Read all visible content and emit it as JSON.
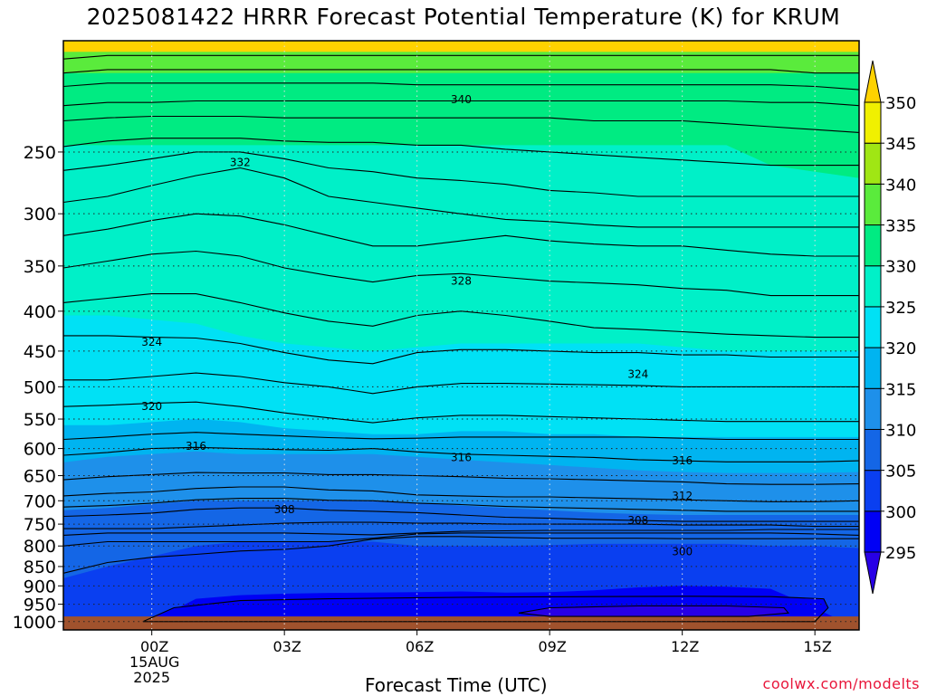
{
  "page": {
    "title": "2025081422 HRRR Forecast Potential Temperature (K) for KRUM",
    "xlabel": "Forecast Time (UTC)",
    "credit": "coolwx.com/modelts"
  },
  "chart_data": {
    "type": "heatmap",
    "title": "2025081422 HRRR Forecast Potential Temperature (K) for KRUM",
    "xlabel": "Forecast Time (UTC)",
    "ylabel": "",
    "x_start_hour_offset": -2,
    "x_end_hour_offset": 16,
    "xlim_hours": [
      -2,
      16
    ],
    "ylim_pressure": [
      1025,
      180
    ],
    "y_scale": "log",
    "x_ticks": [
      {
        "hour": 0,
        "label": "00Z",
        "sub1": "15AUG",
        "sub2": "2025"
      },
      {
        "hour": 3,
        "label": "03Z"
      },
      {
        "hour": 6,
        "label": "06Z"
      },
      {
        "hour": 9,
        "label": "09Z"
      },
      {
        "hour": 12,
        "label": "12Z"
      },
      {
        "hour": 15,
        "label": "15Z"
      }
    ],
    "y_ticks": [
      250,
      300,
      350,
      400,
      450,
      500,
      550,
      600,
      650,
      700,
      750,
      800,
      850,
      900,
      950,
      1000
    ],
    "grid": "dotted",
    "colorbar": {
      "levels": [
        295,
        300,
        305,
        310,
        315,
        320,
        325,
        330,
        335,
        340,
        345,
        350
      ],
      "colors": [
        "#2800e6",
        "#0000f5",
        "#0a3ff0",
        "#1466e6",
        "#1e90ea",
        "#00b4f0",
        "#00e1f5",
        "#00f0c8",
        "#00eb82",
        "#5aeb3c",
        "#a0e614",
        "#f0f000",
        "#ffd200"
      ],
      "extend": "both"
    },
    "fill_levels": [
      {
        "level": 295,
        "p": [
          null,
          null,
          null,
          null,
          null,
          null,
          null,
          null,
          null,
          null,
          null,
          null,
          null,
          null,
          null,
          null,
          null,
          null,
          null
        ]
      },
      {
        "level": 300,
        "p": [
          null,
          null,
          999,
          935,
          925,
          921,
          919,
          918,
          917,
          915,
          918,
          917,
          912,
          904,
          900,
          902,
          908,
          960,
          null
        ]
      },
      {
        "level": 305,
        "p": [
          880,
          850,
          825,
          800,
          790,
          790,
          790,
          790,
          800,
          800,
          800,
          798,
          795,
          795,
          795,
          795,
          800,
          800,
          805
        ]
      },
      {
        "level": 310,
        "p": [
          720,
          715,
          707,
          700,
          700,
          700,
          700,
          700,
          705,
          710,
          715,
          720,
          725,
          728,
          730,
          730,
          730,
          730,
          730
        ]
      },
      {
        "level": 315,
        "p": [
          625,
          615,
          610,
          605,
          610,
          610,
          610,
          610,
          615,
          620,
          625,
          630,
          635,
          640,
          643,
          645,
          645,
          645,
          643
        ]
      },
      {
        "level": 320,
        "p": [
          560,
          560,
          555,
          550,
          555,
          565,
          570,
          575,
          575,
          570,
          570,
          575,
          575,
          580,
          580,
          580,
          580,
          580,
          580
        ]
      },
      {
        "level": 325,
        "p": [
          405,
          405,
          410,
          415,
          430,
          440,
          445,
          450,
          445,
          440,
          440,
          440,
          440,
          440,
          445,
          450,
          450,
          450,
          450
        ]
      },
      {
        "level": 330,
        "p": [
          245,
          245,
          245,
          245,
          245,
          245,
          245,
          245,
          245,
          245,
          245,
          245,
          245,
          245,
          245,
          245,
          260,
          265,
          270
        ]
      },
      {
        "level": 335,
        "p": [
          198,
          198,
          198,
          198,
          198,
          198,
          198,
          198,
          198,
          198,
          198,
          198,
          198,
          198,
          198,
          198,
          198,
          198,
          198
        ]
      },
      {
        "level": 340,
        "p": [
          186,
          186,
          186,
          186,
          186,
          186,
          186,
          186,
          186,
          186,
          186,
          186,
          186,
          186,
          186,
          186,
          186,
          186,
          186
        ]
      }
    ],
    "contours": [
      {
        "level": 298,
        "p": [
          null,
          null,
          null,
          null,
          null,
          null,
          null,
          null,
          null,
          null,
          null,
          null,
          null,
          null,
          null,
          null,
          null,
          null,
          null
        ]
      },
      {
        "level": 300,
        "p": [
          867,
          840,
          827,
          820,
          812,
          808,
          800,
          784,
          778,
          778,
          780,
          782,
          782,
          782,
          783,
          783,
          783,
          783,
          783
        ]
      },
      {
        "level": 302,
        "p": [
          800,
          790,
          790,
          790,
          790,
          790,
          790,
          782,
          772,
          770,
          770,
          770,
          770,
          770,
          770,
          770,
          770,
          772,
          775
        ]
      },
      {
        "level": 304,
        "p": [
          775,
          770,
          770,
          770,
          770,
          770,
          772,
          774,
          770,
          766,
          765,
          764,
          764,
          764,
          764,
          764,
          762,
          762,
          762
        ]
      },
      {
        "level": 306,
        "p": [
          760,
          760,
          760,
          756,
          752,
          748,
          746,
          746,
          748,
          748,
          750,
          750,
          750,
          750,
          752,
          752,
          752,
          755,
          755
        ]
      },
      {
        "level": 308,
        "p": [
          733,
          730,
          726,
          718,
          715,
          715,
          720,
          722,
          725,
          730,
          735,
          737,
          740,
          742,
          744,
          744,
          744,
          744,
          744
        ]
      },
      {
        "level": 310,
        "p": [
          713,
          710,
          705,
          698,
          695,
          695,
          699,
          700,
          705,
          708,
          712,
          714,
          716,
          718,
          720,
          722,
          722,
          722,
          722
        ]
      },
      {
        "level": 312,
        "p": [
          690,
          685,
          682,
          675,
          672,
          672,
          678,
          680,
          688,
          690,
          692,
          692,
          694,
          696,
          698,
          700,
          702,
          702,
          700
        ]
      },
      {
        "level": 314,
        "p": [
          658,
          652,
          648,
          644,
          645,
          645,
          648,
          648,
          650,
          652,
          655,
          656,
          658,
          660,
          662,
          666,
          667,
          667,
          666
        ]
      },
      {
        "level": 316,
        "p": [
          612,
          607,
          600,
          598,
          600,
          602,
          603,
          600,
          606,
          610,
          612,
          614,
          616,
          620,
          622,
          624,
          624,
          624,
          622
        ]
      },
      {
        "level": 318,
        "p": [
          584,
          580,
          575,
          572,
          575,
          578,
          581,
          583,
          582,
          580,
          580,
          580,
          580,
          580,
          582,
          584,
          584,
          584,
          584
        ]
      },
      {
        "level": 320,
        "p": [
          530,
          528,
          525,
          523,
          530,
          540,
          548,
          556,
          548,
          544,
          544,
          546,
          548,
          550,
          552,
          554,
          554,
          554,
          554
        ]
      },
      {
        "level": 322,
        "p": [
          490,
          490,
          485,
          480,
          485,
          494,
          500,
          510,
          500,
          495,
          495,
          496,
          497,
          498,
          500,
          500,
          500,
          500,
          500
        ]
      },
      {
        "level": 324,
        "p": [
          430,
          430,
          432,
          433,
          440,
          452,
          462,
          467,
          452,
          448,
          448,
          450,
          452,
          452,
          455,
          455,
          458,
          458,
          458
        ]
      },
      {
        "level": 326,
        "p": [
          390,
          385,
          380,
          380,
          390,
          402,
          412,
          418,
          405,
          400,
          405,
          412,
          420,
          422,
          425,
          428,
          430,
          432,
          432
        ]
      },
      {
        "level": 328,
        "p": [
          352,
          345,
          338,
          335,
          340,
          352,
          360,
          367,
          360,
          358,
          362,
          366,
          368,
          370,
          374,
          376,
          382,
          382,
          382
        ]
      },
      {
        "level": 330,
        "p": [
          320,
          314,
          306,
          300,
          302,
          310,
          320,
          330,
          330,
          325,
          320,
          325,
          328,
          330,
          330,
          334,
          338,
          340,
          340
        ]
      },
      {
        "level": 332,
        "p": [
          290,
          285,
          276,
          268,
          262,
          270,
          285,
          290,
          295,
          300,
          305,
          307,
          310,
          312,
          312,
          312,
          312,
          312,
          312
        ]
      },
      {
        "level": 334,
        "p": [
          264,
          260,
          255,
          250,
          250,
          255,
          262,
          265,
          270,
          272,
          275,
          280,
          282,
          285,
          285,
          285,
          285,
          285,
          285
        ]
      },
      {
        "level": 336,
        "p": [
          246,
          242,
          240,
          240,
          240,
          242,
          243,
          243,
          245,
          245,
          248,
          250,
          252,
          254,
          256,
          258,
          260,
          260,
          260
        ]
      },
      {
        "level": 338,
        "p": [
          228,
          226,
          225,
          225,
          225,
          226,
          226,
          226,
          226,
          226,
          226,
          226,
          228,
          228,
          228,
          230,
          232,
          234,
          236
        ]
      },
      {
        "level": 340,
        "p": [
          218,
          216,
          216,
          215,
          215,
          215,
          215,
          215,
          215,
          215,
          215,
          215,
          215,
          215,
          215,
          215,
          216,
          216,
          218
        ]
      },
      {
        "level": 342,
        "p": [
          206,
          204,
          204,
          204,
          204,
          204,
          204,
          204,
          205,
          205,
          205,
          205,
          205,
          205,
          205,
          205,
          205,
          206,
          208
        ]
      },
      {
        "level": 344,
        "p": [
          198,
          196,
          196,
          196,
          196,
          196,
          196,
          196,
          196,
          196,
          196,
          196,
          196,
          196,
          196,
          196,
          196,
          198,
          198
        ]
      },
      {
        "level": 346,
        "p": [
          190,
          188,
          188,
          188,
          188,
          188,
          188,
          188,
          188,
          188,
          188,
          188,
          188,
          188,
          188,
          188,
          188,
          188,
          188
        ]
      }
    ],
    "closed_contours": [
      {
        "level": 298,
        "points": [
          [
            -0.2,
            1000
          ],
          [
            0.5,
            960
          ],
          [
            2,
            940
          ],
          [
            4,
            935
          ],
          [
            6,
            932
          ],
          [
            8,
            930
          ],
          [
            10,
            929
          ],
          [
            12,
            928
          ],
          [
            14,
            929
          ],
          [
            15.2,
            935
          ],
          [
            15.3,
            960
          ],
          [
            15,
            1000
          ]
        ]
      },
      {
        "level": 296,
        "points": [
          [
            8.3,
            975
          ],
          [
            9,
            960
          ],
          [
            11,
            955
          ],
          [
            13,
            955
          ],
          [
            14.3,
            960
          ],
          [
            14.4,
            975
          ],
          [
            13.5,
            985
          ],
          [
            9,
            985
          ]
        ]
      }
    ],
    "contour_labels": [
      {
        "text": "340",
        "x": 7.0,
        "p": 214
      },
      {
        "text": "332",
        "x": 2.0,
        "p": 258
      },
      {
        "text": "328",
        "x": 7.0,
        "p": 366
      },
      {
        "text": "324",
        "x": 0.0,
        "p": 438
      },
      {
        "text": "324",
        "x": 11.0,
        "p": 482
      },
      {
        "text": "320",
        "x": 0.0,
        "p": 530
      },
      {
        "text": "316",
        "x": 1.0,
        "p": 596
      },
      {
        "text": "316",
        "x": 7.0,
        "p": 616
      },
      {
        "text": "316",
        "x": 12.0,
        "p": 622
      },
      {
        "text": "312",
        "x": 12.0,
        "p": 690
      },
      {
        "text": "308",
        "x": 3.0,
        "p": 718
      },
      {
        "text": "308",
        "x": 11.0,
        "p": 742
      },
      {
        "text": "300",
        "x": 12.0,
        "p": 813
      }
    ],
    "surface_color": "#a0522d",
    "surface_pressure": 985
  }
}
